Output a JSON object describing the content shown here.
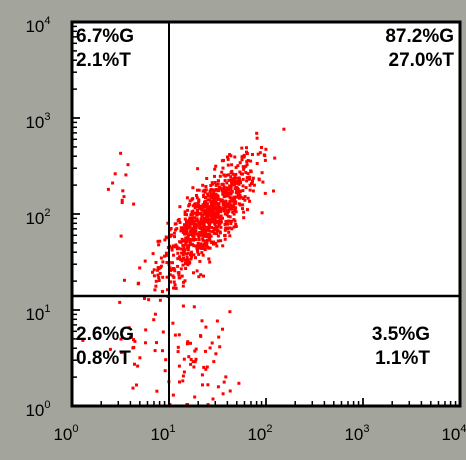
{
  "chart_data": {
    "type": "scatter",
    "xscale": "log",
    "yscale": "log",
    "xlim": [
      1,
      10000
    ],
    "ylim": [
      1,
      10000
    ],
    "x_ticks": [
      {
        "base": "10",
        "exp": "0"
      },
      {
        "base": "10",
        "exp": "1"
      },
      {
        "base": "10",
        "exp": "2"
      },
      {
        "base": "10",
        "exp": "3"
      },
      {
        "base": "10",
        "exp": "4"
      }
    ],
    "y_ticks": [
      {
        "base": "10",
        "exp": "0"
      },
      {
        "base": "10",
        "exp": "1"
      },
      {
        "base": "10",
        "exp": "2"
      },
      {
        "base": "10",
        "exp": "3"
      },
      {
        "base": "10",
        "exp": "4"
      }
    ],
    "gates": {
      "x": 10,
      "y": 14
    },
    "quadrants": {
      "upper_left": [
        "6.7%G",
        "2.1%T"
      ],
      "upper_right": [
        "87.2%G",
        "27.0%T"
      ],
      "lower_left": [
        "2.6%G",
        "0.8%T"
      ],
      "lower_right": [
        "3.5%G",
        "1.1%T"
      ]
    },
    "populations": [
      {
        "center": [
          25,
          90
        ],
        "spread": [
          0.45,
          0.35
        ],
        "count": 900
      },
      {
        "center": [
          20,
          3
        ],
        "spread": [
          0.35,
          0.45
        ],
        "count": 60
      },
      {
        "center": [
          4,
          4
        ],
        "spread": [
          0.3,
          0.4
        ],
        "count": 25
      },
      {
        "center": [
          3,
          200
        ],
        "spread": [
          0.3,
          0.4
        ],
        "count": 12
      }
    ],
    "point_color": "#ff0000",
    "background_color": "#a3a59c",
    "plot_color": "#ffffff"
  }
}
